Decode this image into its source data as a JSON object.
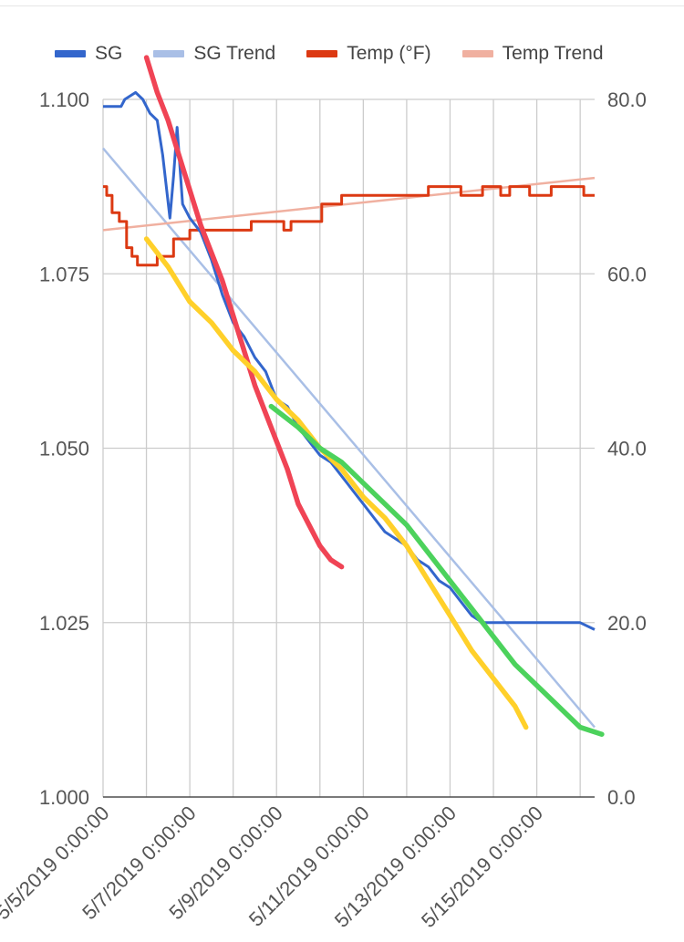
{
  "chart_data": {
    "type": "line",
    "title": "",
    "xlabel": "",
    "ylabel": "",
    "x_axis": {
      "type": "datetime",
      "range": [
        "2019-05-05",
        "2019-05-16 08:00"
      ],
      "tick_labels": [
        "5/5/2019 0:00:00",
        "5/7/2019 0:00:00",
        "5/9/2019 0:00:00",
        "5/11/2019 0:00:00",
        "5/13/2019 0:00:00",
        "5/15/2019 0:00:00"
      ],
      "tick_values": [
        "2019-05-05",
        "2019-05-07",
        "2019-05-09",
        "2019-05-11",
        "2019-05-13",
        "2019-05-15"
      ],
      "minor_gridlines": [
        "2019-05-06",
        "2019-05-08",
        "2019-05-10",
        "2019-05-12",
        "2019-05-14",
        "2019-05-16"
      ]
    },
    "y_left": {
      "ylim": [
        1.0,
        1.1
      ],
      "tick_labels": [
        "1.000",
        "1.025",
        "1.050",
        "1.075",
        "1.100"
      ],
      "tick_values": [
        1.0,
        1.025,
        1.05,
        1.075,
        1.1
      ]
    },
    "y_right": {
      "ylim": [
        0,
        80
      ],
      "tick_labels": [
        "0.0",
        "20.0",
        "40.0",
        "60.0",
        "80.0"
      ],
      "tick_values": [
        0,
        20,
        40,
        60,
        80
      ]
    },
    "grid": true,
    "legend_position": "top",
    "legend": [
      {
        "name": "SG",
        "color": "#3366cc"
      },
      {
        "name": "SG Trend",
        "color": "#a9bfe6"
      },
      {
        "name": "Temp (°F)",
        "color": "#dc3912"
      },
      {
        "name": "Temp Trend",
        "color": "#f0b0a0"
      }
    ],
    "series": [
      {
        "name": "SG",
        "axis": "left",
        "color": "#3366cc",
        "points": [
          [
            "2019-05-05 00:00",
            1.099
          ],
          [
            "2019-05-05 10:00",
            1.099
          ],
          [
            "2019-05-05 12:00",
            1.1
          ],
          [
            "2019-05-05 18:00",
            1.101
          ],
          [
            "2019-05-05 22:00",
            1.1
          ],
          [
            "2019-05-06 02:00",
            1.098
          ],
          [
            "2019-05-06 06:00",
            1.097
          ],
          [
            "2019-05-06 09:00",
            1.092
          ],
          [
            "2019-05-06 13:00",
            1.083
          ],
          [
            "2019-05-06 15:00",
            1.089
          ],
          [
            "2019-05-06 17:00",
            1.096
          ],
          [
            "2019-05-06 20:00",
            1.085
          ],
          [
            "2019-05-07 00:00",
            1.083
          ],
          [
            "2019-05-07 06:00",
            1.081
          ],
          [
            "2019-05-07 12:00",
            1.077
          ],
          [
            "2019-05-07 18:00",
            1.072
          ],
          [
            "2019-05-08 00:00",
            1.068
          ],
          [
            "2019-05-08 06:00",
            1.066
          ],
          [
            "2019-05-08 12:00",
            1.063
          ],
          [
            "2019-05-08 18:00",
            1.061
          ],
          [
            "2019-05-09 00:00",
            1.057
          ],
          [
            "2019-05-09 06:00",
            1.056
          ],
          [
            "2019-05-09 12:00",
            1.053
          ],
          [
            "2019-05-09 18:00",
            1.051
          ],
          [
            "2019-05-10 00:00",
            1.049
          ],
          [
            "2019-05-10 06:00",
            1.048
          ],
          [
            "2019-05-10 12:00",
            1.046
          ],
          [
            "2019-05-10 18:00",
            1.044
          ],
          [
            "2019-05-11 00:00",
            1.042
          ],
          [
            "2019-05-11 06:00",
            1.04
          ],
          [
            "2019-05-11 12:00",
            1.038
          ],
          [
            "2019-05-11 18:00",
            1.037
          ],
          [
            "2019-05-12 00:00",
            1.036
          ],
          [
            "2019-05-12 06:00",
            1.034
          ],
          [
            "2019-05-12 12:00",
            1.033
          ],
          [
            "2019-05-12 18:00",
            1.031
          ],
          [
            "2019-05-13 00:00",
            1.03
          ],
          [
            "2019-05-13 06:00",
            1.028
          ],
          [
            "2019-05-13 12:00",
            1.026
          ],
          [
            "2019-05-13 18:00",
            1.025
          ],
          [
            "2019-05-14 00:00",
            1.025
          ],
          [
            "2019-05-14 12:00",
            1.025
          ],
          [
            "2019-05-15 00:00",
            1.025
          ],
          [
            "2019-05-15 12:00",
            1.025
          ],
          [
            "2019-05-16 00:00",
            1.025
          ],
          [
            "2019-05-16 08:00",
            1.024
          ]
        ]
      },
      {
        "name": "SG Trend",
        "axis": "left",
        "color": "#a9bfe6",
        "points": [
          [
            "2019-05-05 00:00",
            1.093
          ],
          [
            "2019-05-16 08:00",
            1.01
          ]
        ]
      },
      {
        "name": "Temp (°F)",
        "axis": "right",
        "color": "#dc3912",
        "points": [
          [
            "2019-05-05 00:00",
            70
          ],
          [
            "2019-05-05 02:00",
            69
          ],
          [
            "2019-05-05 05:00",
            67
          ],
          [
            "2019-05-05 09:00",
            66
          ],
          [
            "2019-05-05 13:00",
            63
          ],
          [
            "2019-05-05 16:00",
            62
          ],
          [
            "2019-05-05 19:00",
            61
          ],
          [
            "2019-05-06 02:00",
            61
          ],
          [
            "2019-05-06 06:00",
            62
          ],
          [
            "2019-05-06 11:00",
            62
          ],
          [
            "2019-05-06 15:00",
            64
          ],
          [
            "2019-05-07 00:00",
            65
          ],
          [
            "2019-05-08 00:00",
            65
          ],
          [
            "2019-05-08 10:00",
            66
          ],
          [
            "2019-05-08 22:00",
            66
          ],
          [
            "2019-05-09 04:00",
            65
          ],
          [
            "2019-05-09 08:00",
            66
          ],
          [
            "2019-05-09 20:00",
            66
          ],
          [
            "2019-05-10 01:00",
            68
          ],
          [
            "2019-05-10 12:00",
            69
          ],
          [
            "2019-05-12 00:00",
            69
          ],
          [
            "2019-05-12 12:00",
            70
          ],
          [
            "2019-05-13 04:00",
            70
          ],
          [
            "2019-05-13 06:00",
            69
          ],
          [
            "2019-05-13 18:00",
            70
          ],
          [
            "2019-05-14 04:00",
            69
          ],
          [
            "2019-05-14 09:00",
            70
          ],
          [
            "2019-05-14 20:00",
            69
          ],
          [
            "2019-05-15 08:00",
            70
          ],
          [
            "2019-05-15 20:00",
            70
          ],
          [
            "2019-05-16 02:00",
            69
          ],
          [
            "2019-05-16 08:00",
            69
          ]
        ]
      },
      {
        "name": "Temp Trend",
        "axis": "right",
        "color": "#f0b0a0",
        "points": [
          [
            "2019-05-05 00:00",
            65
          ],
          [
            "2019-05-16 08:00",
            71
          ]
        ]
      },
      {
        "name": "",
        "axis": "left",
        "color": "#f04455",
        "points": [
          [
            "2019-05-06 00:00",
            1.106
          ],
          [
            "2019-05-06 06:00",
            1.101
          ],
          [
            "2019-05-06 12:00",
            1.097
          ],
          [
            "2019-05-06 18:00",
            1.092
          ],
          [
            "2019-05-07 00:00",
            1.087
          ],
          [
            "2019-05-07 06:00",
            1.082
          ],
          [
            "2019-05-07 12:00",
            1.078
          ],
          [
            "2019-05-07 18:00",
            1.074
          ],
          [
            "2019-05-08 00:00",
            1.069
          ],
          [
            "2019-05-08 06:00",
            1.064
          ],
          [
            "2019-05-08 12:00",
            1.059
          ],
          [
            "2019-05-08 18:00",
            1.055
          ],
          [
            "2019-05-09 00:00",
            1.051
          ],
          [
            "2019-05-09 06:00",
            1.047
          ],
          [
            "2019-05-09 12:00",
            1.042
          ],
          [
            "2019-05-09 18:00",
            1.039
          ],
          [
            "2019-05-10 00:00",
            1.036
          ],
          [
            "2019-05-10 06:00",
            1.034
          ],
          [
            "2019-05-10 12:00",
            1.033
          ]
        ]
      },
      {
        "name": "",
        "axis": "left",
        "color": "#ffd02a",
        "points": [
          [
            "2019-05-06 00:00",
            1.08
          ],
          [
            "2019-05-06 12:00",
            1.076
          ],
          [
            "2019-05-07 00:00",
            1.071
          ],
          [
            "2019-05-07 12:00",
            1.068
          ],
          [
            "2019-05-08 00:00",
            1.064
          ],
          [
            "2019-05-08 12:00",
            1.061
          ],
          [
            "2019-05-09 00:00",
            1.057
          ],
          [
            "2019-05-09 12:00",
            1.054
          ],
          [
            "2019-05-10 00:00",
            1.05
          ],
          [
            "2019-05-10 12:00",
            1.047
          ],
          [
            "2019-05-11 00:00",
            1.043
          ],
          [
            "2019-05-11 12:00",
            1.04
          ],
          [
            "2019-05-12 00:00",
            1.036
          ],
          [
            "2019-05-12 12:00",
            1.031
          ],
          [
            "2019-05-13 00:00",
            1.026
          ],
          [
            "2019-05-13 12:00",
            1.021
          ],
          [
            "2019-05-14 00:00",
            1.017
          ],
          [
            "2019-05-14 12:00",
            1.013
          ],
          [
            "2019-05-14 18:00",
            1.01
          ]
        ]
      },
      {
        "name": "",
        "axis": "left",
        "color": "#4cd25c",
        "points": [
          [
            "2019-05-08 21:00",
            1.056
          ],
          [
            "2019-05-09 12:00",
            1.053
          ],
          [
            "2019-05-10 00:00",
            1.05
          ],
          [
            "2019-05-10 12:00",
            1.048
          ],
          [
            "2019-05-11 00:00",
            1.045
          ],
          [
            "2019-05-11 12:00",
            1.042
          ],
          [
            "2019-05-12 00:00",
            1.039
          ],
          [
            "2019-05-12 12:00",
            1.035
          ],
          [
            "2019-05-13 00:00",
            1.031
          ],
          [
            "2019-05-13 12:00",
            1.027
          ],
          [
            "2019-05-14 00:00",
            1.023
          ],
          [
            "2019-05-14 12:00",
            1.019
          ],
          [
            "2019-05-15 00:00",
            1.016
          ],
          [
            "2019-05-15 12:00",
            1.013
          ],
          [
            "2019-05-16 00:00",
            1.01
          ],
          [
            "2019-05-16 12:00",
            1.009
          ]
        ]
      }
    ]
  }
}
